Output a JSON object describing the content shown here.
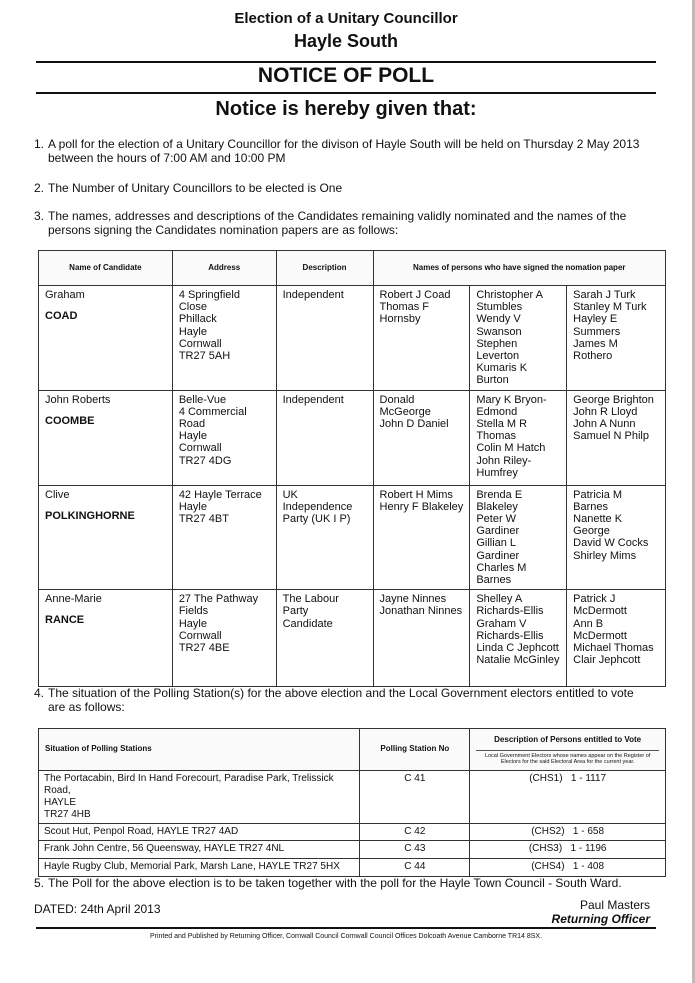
{
  "header": {
    "line1": "Election of a Unitary Councillor",
    "line2": "Hayle South",
    "title": "NOTICE OF POLL",
    "subtitle": "Notice is hereby given that:"
  },
  "items": [
    {
      "num": "1.",
      "text": "A poll for the election of a Unitary Councillor for the divison of Hayle South will be held on Thursday 2 May 2013 between the hours of 7:00 AM and 10:00 PM"
    },
    {
      "num": "2.",
      "text": "The Number of Unitary Councillors to be elected is One"
    },
    {
      "num": "3.",
      "text": "The names, addresses and descriptions of the Candidates remaining validly nominated and the names of the persons signing the Candidates nomination papers are as follows:"
    },
    {
      "num": "4.",
      "text": "The situation of the Polling Station(s) for the above election and the Local Government electors entitled to vote are as follows:"
    },
    {
      "num": "5.",
      "text": "The Poll for the above election is to be taken together with the poll for the Hayle Town Council - South Ward."
    }
  ],
  "candidates_table": {
    "headers": [
      "Name of Candidate",
      "Address",
      "Description",
      "Names of persons who have signed the nomation paper"
    ],
    "rows": [
      {
        "forename": "Graham",
        "surname": "COAD",
        "address": "4 Springfield\nClose\nPhillack\nHayle\nCornwall\nTR27 5AH",
        "description": "Independent",
        "signers": [
          "Robert J Coad\nThomas F\nHornsby",
          "Christopher A\nStumbles\nWendy V\nSwanson\nStephen Leverton\nKumaris K Burton",
          "Sarah J Turk\nStanley M Turk\nHayley E\nSummers\nJames M\nRothero"
        ]
      },
      {
        "forename": "John Roberts",
        "surname": "COOMBE",
        "address": "Belle-Vue\n4 Commercial\nRoad\nHayle\nCornwall\nTR27 4DG",
        "description": "Independent",
        "signers": [
          "Donald\nMcGeorge\nJohn D Daniel",
          "Mary K Bryon-\nEdmond\nStella M R\nThomas\nColin M Hatch\nJohn Riley-\nHumfrey",
          "George Brighton\nJohn R Lloyd\nJohn A Nunn\nSamuel N Philp"
        ]
      },
      {
        "forename": "Clive",
        "surname": "POLKINGHORNE",
        "address": "42 Hayle Terrace\nHayle\nTR27 4BT",
        "description": "UK Independence\nParty (UK I P)",
        "signers": [
          "Robert H Mims\nHenry F Blakeley",
          "Brenda E Blakeley\nPeter W Gardiner\nGillian L Gardiner\nCharles M Barnes",
          "Patricia M\nBarnes\nNanette K\nGeorge\nDavid W Cocks\nShirley Mims"
        ]
      },
      {
        "forename": "Anne-Marie",
        "surname": "RANCE",
        "address": "27 The Pathway\nFields\nHayle\nCornwall\nTR27 4BE",
        "description": "The Labour Party\nCandidate",
        "signers": [
          "Jayne Ninnes\nJonathan Ninnes",
          "Shelley A\nRichards-Ellis\nGraham V\nRichards-Ellis\nLinda C Jephcott\nNatalie McGinley",
          "Patrick J\nMcDermott\nAnn B\nMcDermott\nMichael Thomas\nClair Jephcott"
        ]
      }
    ]
  },
  "polling_table": {
    "headers": [
      "Situation of Polling Stations",
      "Polling Station No",
      "Description of Persons entitled to Vote"
    ],
    "subheader": "Local Government Electors whose names appear on the Register of Electors for the said Electoral Area for the current year.",
    "rows": [
      {
        "situation": "The Portacabin, Bird In Hand Forecourt, Paradise Park, Trelissick Road,\nHAYLE\nTR27 4HB",
        "number": "C 41",
        "district": "(CHS1)",
        "range": "1 - 1117"
      },
      {
        "situation": "Scout Hut, Penpol Road, HAYLE TR27 4AD",
        "number": "C 42",
        "district": "(CHS2)",
        "range": "1 - 658"
      },
      {
        "situation": "Frank John Centre, 56 Queensway, HAYLE TR27 4NL",
        "number": "C 43",
        "district": "(CHS3)",
        "range": "1 - 1196"
      },
      {
        "situation": "Hayle Rugby Club, Memorial Park, Marsh Lane, HAYLE TR27 5HX",
        "number": "C 44",
        "district": "(CHS4)",
        "range": "1 - 408"
      }
    ]
  },
  "dated": "DATED:  24th April 2013",
  "officer": {
    "name": "Paul Masters",
    "title": "Returning Officer"
  },
  "footer": "Printed and Published by Returning Officer,  Cornwall Council    Cornwall Council Offices   Dolcoath Avenue   Camborne        TR14 8SX."
}
